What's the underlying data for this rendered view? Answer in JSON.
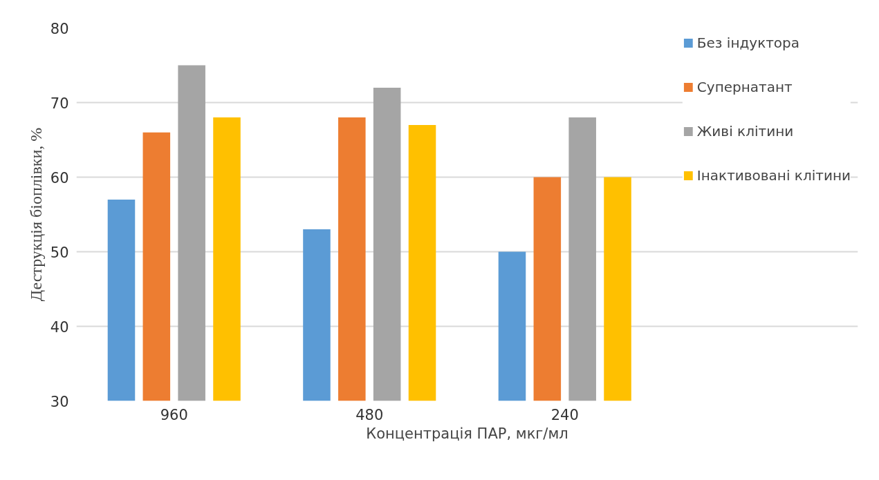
{
  "chart_data": {
    "type": "bar",
    "xlabel": "Концентрація ПАР, мкг/мл",
    "ylabel": "Деструкція біоплівки, %",
    "categories": [
      "960",
      "480",
      "240"
    ],
    "series": [
      {
        "name": "Без індуктора",
        "color": "#5b9bd5",
        "values": [
          57,
          53,
          50
        ]
      },
      {
        "name": "Супернатант",
        "color": "#ed7d31",
        "values": [
          66,
          68,
          60
        ]
      },
      {
        "name": "Живі клітини",
        "color": "#a5a5a5",
        "values": [
          75,
          72,
          68
        ]
      },
      {
        "name": "Інактивовані клітини",
        "color": "#ffc000",
        "values": [
          68,
          67,
          60
        ]
      }
    ],
    "ylim": [
      30,
      80
    ],
    "yticks": [
      30,
      40,
      50,
      60,
      70,
      80
    ],
    "grid": "y",
    "legend": "top right"
  }
}
